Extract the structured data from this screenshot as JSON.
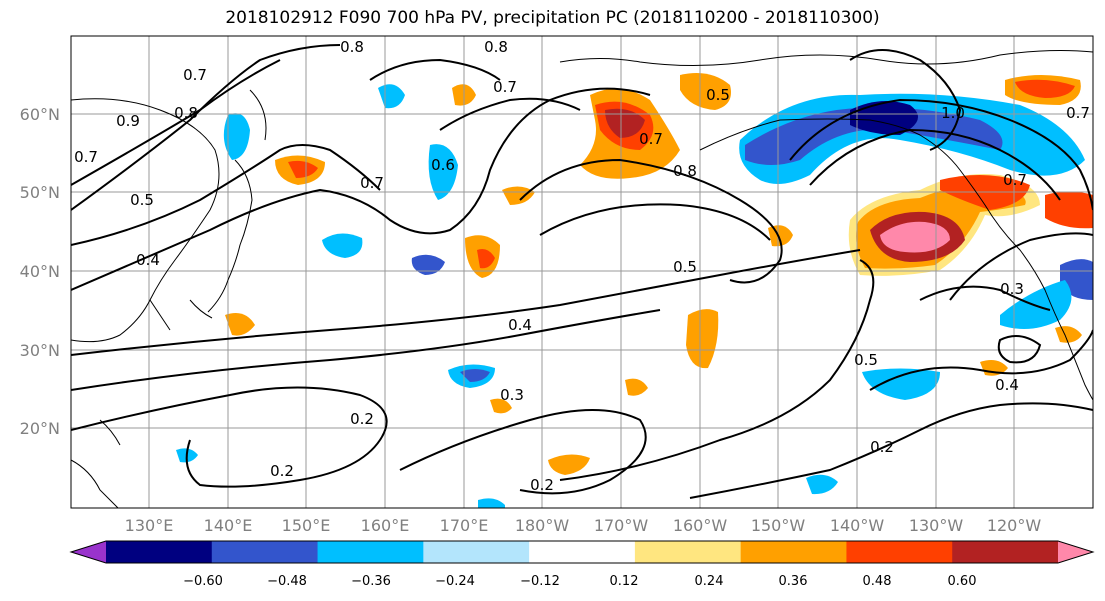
{
  "title": "2018102912 F090 700 hPa PV, precipitation PC (2018110200 - 2018110300)",
  "lat_labels": [
    "60°N",
    "50°N",
    "40°N",
    "30°N",
    "20°N"
  ],
  "lon_labels": [
    "130°E",
    "140°E",
    "150°E",
    "160°E",
    "170°E",
    "180°W",
    "170°W",
    "160°W",
    "150°W",
    "140°W",
    "130°W",
    "120°W"
  ],
  "colorbar": {
    "tick_labels": [
      "−0.60",
      "−0.48",
      "−0.36",
      "−0.24",
      "−0.12",
      "0.12",
      "0.24",
      "0.36",
      "0.48",
      "0.60"
    ],
    "colors": [
      "#9933cc",
      "#000080",
      "#3355cc",
      "#00bfff",
      "#b3e5fc",
      "#ffffff",
      "#ffe680",
      "#ffa000",
      "#ff4000",
      "#b22222",
      "#ff88aa"
    ]
  },
  "contour_labels": [
    "0.8",
    "0.8",
    "0.7",
    "0.8",
    "0.9",
    "0.7",
    "0.5",
    "0.4",
    "0.7",
    "0.6",
    "0.7",
    "0.5",
    "0.7",
    "0.8",
    "1.0",
    "0.7",
    "0.7",
    "0.5",
    "0.4",
    "0.3",
    "0.2",
    "0.2",
    "0.2",
    "0.5",
    "0.4",
    "0.2",
    "0.3"
  ]
}
